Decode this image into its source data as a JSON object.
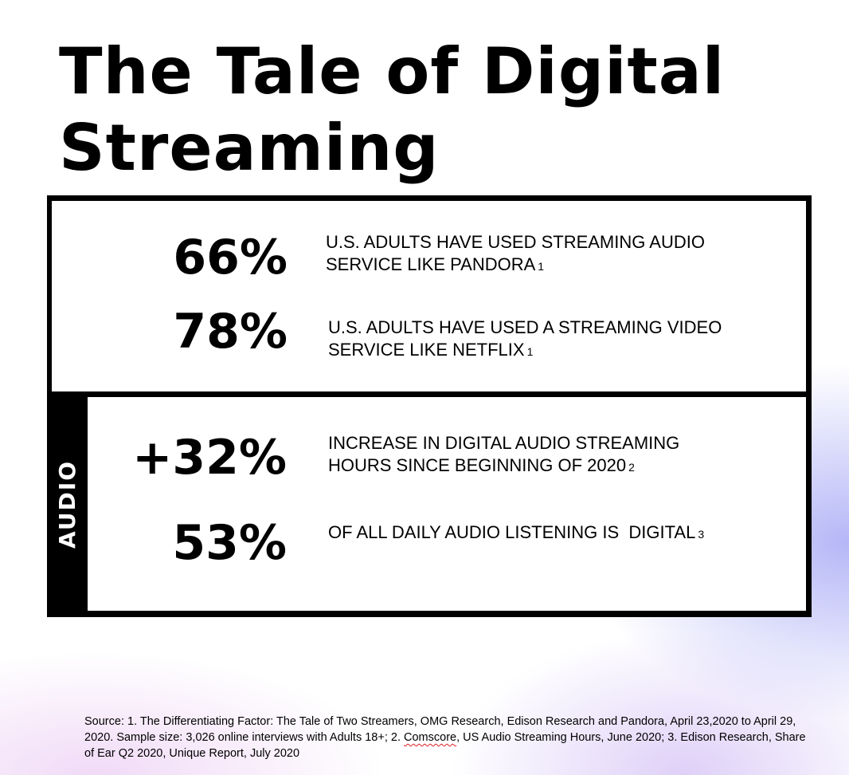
{
  "title": {
    "line1": "The Tale of Digital",
    "line2": "Streaming"
  },
  "top_stats": [
    {
      "value": "66%",
      "text": "U.S. ADULTS HAVE USED STREAMING AUDIO SERVICE LIKE PANDORA",
      "ref": "1"
    },
    {
      "value": "78%",
      "text": "U.S. ADULTS HAVE USED A STREAMING VIDEO SERVICE LIKE NETFLIX",
      "ref": "1"
    }
  ],
  "audio_section": {
    "label": "AUDIO",
    "stats": [
      {
        "value": "+32%",
        "text": "INCREASE IN DIGITAL AUDIO STREAMING HOURS SINCE BEGINNING OF 2020",
        "ref": "2"
      },
      {
        "value": "53%",
        "text": "OF ALL DAILY AUDIO LISTENING IS  DIGITAL",
        "ref": "3"
      }
    ]
  },
  "source": {
    "part1": "Source: 1. The Differentiating Factor: The Tale of Two Streamers, OMG Research, Edison Research and Pandora, April 23,2020 to April 29, 2020. Sample size: 3,026 online interviews with Adults 18+; 2. ",
    "comscore": "Comscore",
    "part2": ", US Audio Streaming Hours, June 2020;  3. Edison Research, Share of Ear Q2 2020, Unique Report, July 2020"
  }
}
